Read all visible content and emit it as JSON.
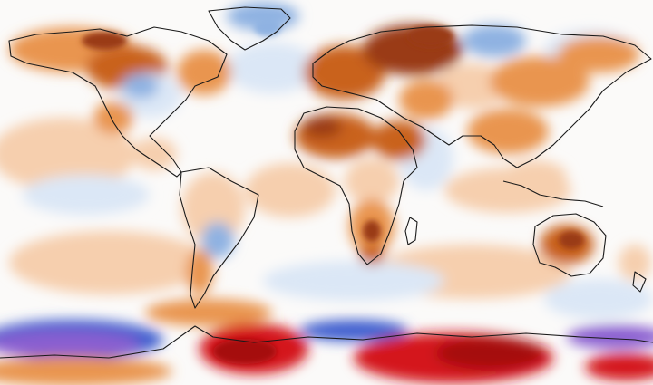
{
  "map": {
    "variable": "temperature-anomaly",
    "projection": "equirectangular",
    "palette": {
      "neutral": "#fbfaf9",
      "warm_light": "#f6cfae",
      "warm_mid": "#e9954f",
      "warm_strong": "#c9621f",
      "warm_deep": "#9a3a12",
      "extreme_warm": "#d4161a",
      "extreme_warm_deep": "#a50e10",
      "cool_light": "#dbe7f6",
      "cool_mid": "#8fb2e2",
      "cool_strong": "#3f5fcf",
      "extreme_cold": "#8a5fd0",
      "coastline": "#1a1a1a"
    }
  }
}
